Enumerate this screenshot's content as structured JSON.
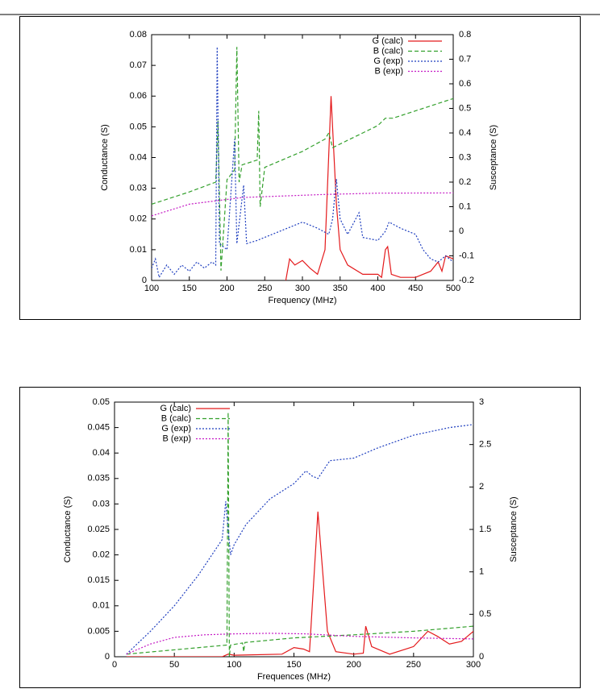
{
  "chart_data": [
    {
      "type": "line",
      "xlabel": "Frequency (MHz)",
      "ylabel": "Conductance (S)",
      "y2label": "Susceptance (S)",
      "xlim": [
        100,
        500
      ],
      "xticks": [
        100,
        150,
        200,
        250,
        300,
        350,
        400,
        450,
        500
      ],
      "ylim": [
        0,
        0.08
      ],
      "yticks": [
        0,
        0.01,
        0.02,
        0.03,
        0.04,
        0.05,
        0.06,
        0.07,
        0.08
      ],
      "y2lim": [
        -0.2,
        0.8
      ],
      "y2ticks": [
        -0.2,
        -0.1,
        0,
        0.1,
        0.2,
        0.3,
        0.4,
        0.5,
        0.6,
        0.7,
        0.8
      ],
      "grid": false,
      "legend": "upper right",
      "series": [
        {
          "name": "G (calc)",
          "color": "#e41a1c",
          "dash": "solid",
          "x": [
            278,
            283,
            290,
            300,
            310,
            320,
            330,
            338,
            345,
            350,
            360,
            380,
            395,
            400,
            405,
            410,
            413,
            418,
            430,
            450,
            470,
            480,
            485,
            490,
            500
          ],
          "values": [
            0,
            0.007,
            0.005,
            0.0065,
            0.004,
            0.002,
            0.01,
            0.06,
            0.025,
            0.01,
            0.005,
            0.002,
            0.002,
            0.002,
            0.001,
            0.01,
            0.011,
            0.002,
            0.001,
            0.001,
            0.003,
            0.006,
            0.003,
            0.008,
            0.007
          ]
        },
        {
          "name": "B (calc)",
          "color": "#33a02c",
          "dash": "dashed",
          "axis": "y2",
          "x": [
            100,
            150,
            185,
            188,
            192,
            200,
            210,
            213,
            216,
            220,
            240,
            242,
            244,
            250,
            300,
            330,
            335,
            340,
            360,
            380,
            400,
            410,
            420,
            440,
            460,
            480,
            500
          ],
          "values": [
            0.11,
            0.16,
            0.2,
            0.45,
            -0.16,
            0.21,
            0.25,
            0.75,
            0.2,
            0.27,
            0.29,
            0.49,
            0.1,
            0.26,
            0.325,
            0.375,
            0.4,
            0.34,
            0.37,
            0.4,
            0.43,
            0.46,
            0.46,
            0.48,
            0.5,
            0.52,
            0.54
          ]
        },
        {
          "name": "G (exp)",
          "color": "#1f3fbf",
          "dash": "dotted",
          "x": [
            100,
            105,
            110,
            120,
            130,
            140,
            150,
            160,
            170,
            180,
            185,
            187,
            190,
            200,
            210,
            213,
            222,
            226,
            240,
            260,
            280,
            300,
            320,
            335,
            340,
            345,
            350,
            360,
            375,
            380,
            400,
            410,
            415,
            430,
            450,
            460,
            470,
            480,
            490,
            500
          ],
          "values": [
            0.004,
            0.007,
            0.001,
            0.005,
            0.002,
            0.005,
            0.003,
            0.006,
            0.004,
            0.006,
            0.005,
            0.076,
            0.012,
            0.01,
            0.046,
            0.012,
            0.031,
            0.012,
            0.013,
            0.015,
            0.017,
            0.019,
            0.017,
            0.015,
            0.02,
            0.033,
            0.02,
            0.015,
            0.022,
            0.014,
            0.013,
            0.016,
            0.019,
            0.017,
            0.015,
            0.01,
            0.007,
            0.006,
            0.008,
            0.006
          ]
        },
        {
          "name": "B (exp)",
          "color": "#c51bc5",
          "dash": "dotted",
          "axis": "y2",
          "x": [
            100,
            150,
            220,
            330,
            400,
            500
          ],
          "values": [
            0.0625,
            0.11,
            0.1375,
            0.15,
            0.155,
            0.156
          ]
        }
      ]
    },
    {
      "type": "line",
      "xlabel": "Frequences (MHz)",
      "ylabel": "Conductance (S)",
      "y2label": "Susceptance (S)",
      "xlim": [
        0,
        300
      ],
      "xticks": [
        0,
        50,
        100,
        150,
        200,
        250,
        300
      ],
      "ylim": [
        0,
        0.05
      ],
      "yticks": [
        0,
        0.005,
        0.01,
        0.015,
        0.02,
        0.025,
        0.03,
        0.035,
        0.04,
        0.045,
        0.05
      ],
      "y2lim": [
        0,
        3
      ],
      "y2ticks": [
        0,
        0.5,
        1,
        1.5,
        2,
        2.5,
        3
      ],
      "grid": false,
      "legend": "upper left",
      "series": [
        {
          "name": "G (calc)",
          "color": "#e41a1c",
          "dash": "solid",
          "x": [
            10,
            90,
            95,
            100,
            140,
            150,
            158,
            163,
            170,
            178,
            185,
            200,
            208,
            210,
            215,
            230,
            250,
            262,
            270,
            280,
            290,
            295,
            300
          ],
          "values": [
            0,
            0,
            0.0005,
            0.0003,
            0.0005,
            0.0018,
            0.0015,
            0.001,
            0.0285,
            0.005,
            0.001,
            0.0005,
            0.0007,
            0.006,
            0.002,
            0.0005,
            0.002,
            0.005,
            0.004,
            0.0025,
            0.003,
            0.004,
            0.005
          ]
        },
        {
          "name": "B (calc)",
          "color": "#33a02c",
          "dash": "dashed",
          "x": [
            10,
            94,
            95,
            96,
            97,
            107,
            108,
            109,
            150,
            200,
            250,
            300
          ],
          "values": [
            0.0005,
            0.0023,
            0.048,
            0,
            0.0023,
            0.0027,
            0.001,
            0.0028,
            0.0037,
            0.0043,
            0.005,
            0.006
          ]
        },
        {
          "name": "G (exp)",
          "color": "#1f3fbf",
          "dash": "dotted",
          "x": [
            10,
            30,
            50,
            70,
            90,
            93,
            95,
            97,
            100,
            105,
            110,
            130,
            150,
            160,
            165,
            170,
            180,
            200,
            220,
            250,
            280,
            300
          ],
          "values": [
            0.0005,
            0.005,
            0.01,
            0.016,
            0.023,
            0.0305,
            0.025,
            0.02,
            0.022,
            0.024,
            0.026,
            0.031,
            0.034,
            0.0365,
            0.0355,
            0.035,
            0.0385,
            0.039,
            0.041,
            0.0435,
            0.045,
            0.0456
          ]
        },
        {
          "name": "B (exp)",
          "color": "#c51bc5",
          "dash": "dotted",
          "x": [
            10,
            30,
            50,
            75,
            100,
            130,
            160,
            200,
            250,
            300
          ],
          "values": [
            0.0005,
            0.0025,
            0.0038,
            0.0043,
            0.0045,
            0.0046,
            0.0045,
            0.004,
            0.0037,
            0.0035
          ]
        }
      ]
    }
  ]
}
